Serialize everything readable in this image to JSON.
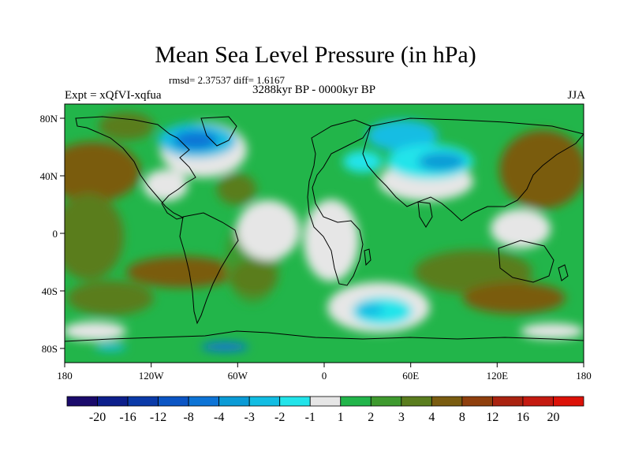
{
  "title": "Mean Sea Level Pressure (in hPa)",
  "stats": "rmsd= 2.37537 diff= 1.6167",
  "experiment": "Expt = xQfVI-xqfua",
  "period": "3288kyr BP - 0000kyr BP",
  "season": "JJA",
  "axes": {
    "x_ticks": [
      "180",
      "120W",
      "60W",
      "0",
      "60E",
      "120E",
      "180"
    ],
    "y_ticks": [
      "80N",
      "40N",
      "0",
      "40S",
      "80S"
    ]
  },
  "colorbar": {
    "labels": [
      "-20",
      "-16",
      "-12",
      "-8",
      "-4",
      "-3",
      "-2",
      "-1",
      "1",
      "2",
      "3",
      "4",
      "8",
      "12",
      "16",
      "20"
    ],
    "colors": [
      "#1a0a6b",
      "#0d1f8c",
      "#0a3aa8",
      "#0b55c4",
      "#0d74d6",
      "#0a9bd6",
      "#12bde3",
      "#22e4ea",
      "#e6e6e6",
      "#22b54a",
      "#3e9a2e",
      "#5a7d1e",
      "#7a5c10",
      "#8f3f0d",
      "#aa2310",
      "#c41a10",
      "#dc1208"
    ]
  },
  "map": {
    "ocean_color": "#22b54a",
    "land_neutral": "#e6e6e6",
    "negative_colors": [
      "#22e4ea",
      "#12bde3",
      "#0a9bd6",
      "#0d74d6"
    ],
    "positive_colors": [
      "#3e9a2e",
      "#5a7d1e",
      "#7a5c10"
    ]
  }
}
